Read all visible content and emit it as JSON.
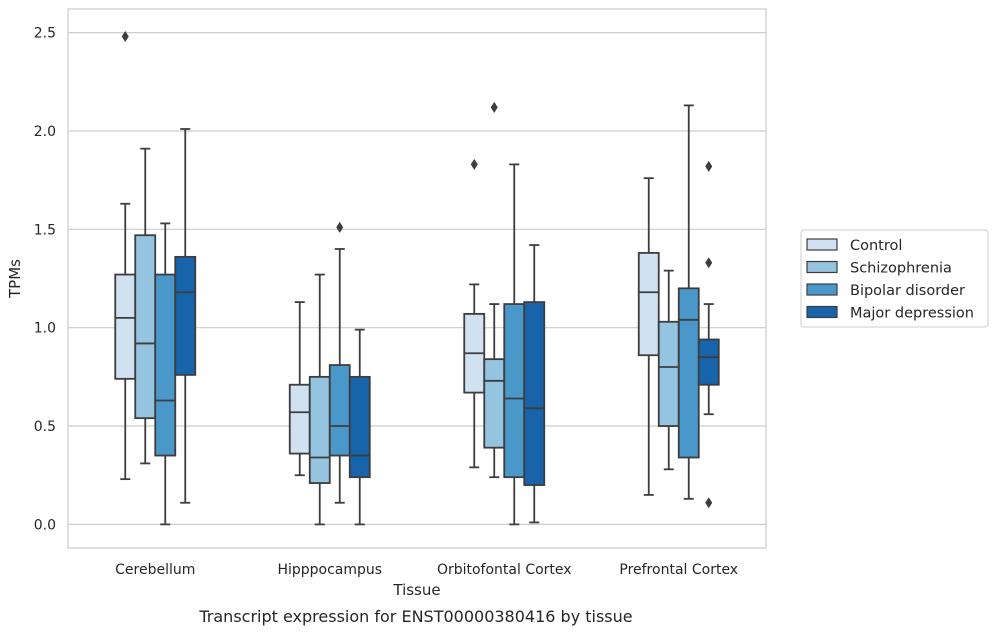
{
  "chart_data": {
    "type": "box",
    "title": "",
    "caption": "Transcript expression for ENST00000380416 by tissue",
    "xlabel": "Tissue",
    "ylabel": "TPMs",
    "ylim": [
      -0.12,
      2.62
    ],
    "yticks": [
      0.0,
      0.5,
      1.0,
      1.5,
      2.0,
      2.5
    ],
    "ytick_labels": [
      "0.0",
      "0.5",
      "1.0",
      "1.5",
      "2.0",
      "2.5"
    ],
    "grid": "horizontal",
    "legend_position": "right",
    "categories": [
      "Cerebellum",
      "Hipppocampus",
      "Orbitofontal Cortex",
      "Prefrontal Cortex"
    ],
    "series": [
      {
        "name": "Control",
        "color": "#d0e1f2",
        "boxes": [
          {
            "whislo": 0.23,
            "q1": 0.74,
            "med": 1.05,
            "q3": 1.27,
            "whishi": 1.63,
            "fliers": [
              2.48
            ]
          },
          {
            "whislo": 0.25,
            "q1": 0.36,
            "med": 0.57,
            "q3": 0.71,
            "whishi": 1.13,
            "fliers": []
          },
          {
            "whislo": 0.29,
            "q1": 0.67,
            "med": 0.87,
            "q3": 1.07,
            "whishi": 1.22,
            "fliers": [
              1.83
            ]
          },
          {
            "whislo": 0.15,
            "q1": 0.86,
            "med": 1.18,
            "q3": 1.38,
            "whishi": 1.76,
            "fliers": []
          }
        ]
      },
      {
        "name": "Schizophrenia",
        "color": "#94c4df",
        "boxes": [
          {
            "whislo": 0.31,
            "q1": 0.54,
            "med": 0.92,
            "q3": 1.47,
            "whishi": 1.91,
            "fliers": []
          },
          {
            "whislo": 0.0,
            "q1": 0.21,
            "med": 0.34,
            "q3": 0.75,
            "whishi": 1.27,
            "fliers": []
          },
          {
            "whislo": 0.24,
            "q1": 0.39,
            "med": 0.73,
            "q3": 0.84,
            "whishi": 1.12,
            "fliers": [
              2.12
            ]
          },
          {
            "whislo": 0.28,
            "q1": 0.5,
            "med": 0.8,
            "q3": 1.03,
            "whishi": 1.29,
            "fliers": []
          }
        ]
      },
      {
        "name": "Bipolar disorder",
        "color": "#4a98c9",
        "boxes": [
          {
            "whislo": 0.0,
            "q1": 0.35,
            "med": 0.63,
            "q3": 1.27,
            "whishi": 1.53,
            "fliers": []
          },
          {
            "whislo": 0.11,
            "q1": 0.35,
            "med": 0.5,
            "q3": 0.81,
            "whishi": 1.4,
            "fliers": [
              1.51
            ]
          },
          {
            "whislo": 0.0,
            "q1": 0.24,
            "med": 0.64,
            "q3": 1.12,
            "whishi": 1.83,
            "fliers": []
          },
          {
            "whislo": 0.13,
            "q1": 0.34,
            "med": 1.04,
            "q3": 1.2,
            "whishi": 2.13,
            "fliers": []
          }
        ]
      },
      {
        "name": "Major depression",
        "color": "#1764ab",
        "boxes": [
          {
            "whislo": 0.11,
            "q1": 0.76,
            "med": 1.18,
            "q3": 1.36,
            "whishi": 2.01,
            "fliers": []
          },
          {
            "whislo": 0.0,
            "q1": 0.24,
            "med": 0.35,
            "q3": 0.75,
            "whishi": 0.99,
            "fliers": []
          },
          {
            "whislo": 0.01,
            "q1": 0.2,
            "med": 0.59,
            "q3": 1.13,
            "whishi": 1.42,
            "fliers": []
          },
          {
            "whislo": 0.56,
            "q1": 0.71,
            "med": 0.85,
            "q3": 0.94,
            "whishi": 1.12,
            "fliers": [
              1.82,
              1.33,
              0.11
            ]
          }
        ]
      }
    ]
  }
}
